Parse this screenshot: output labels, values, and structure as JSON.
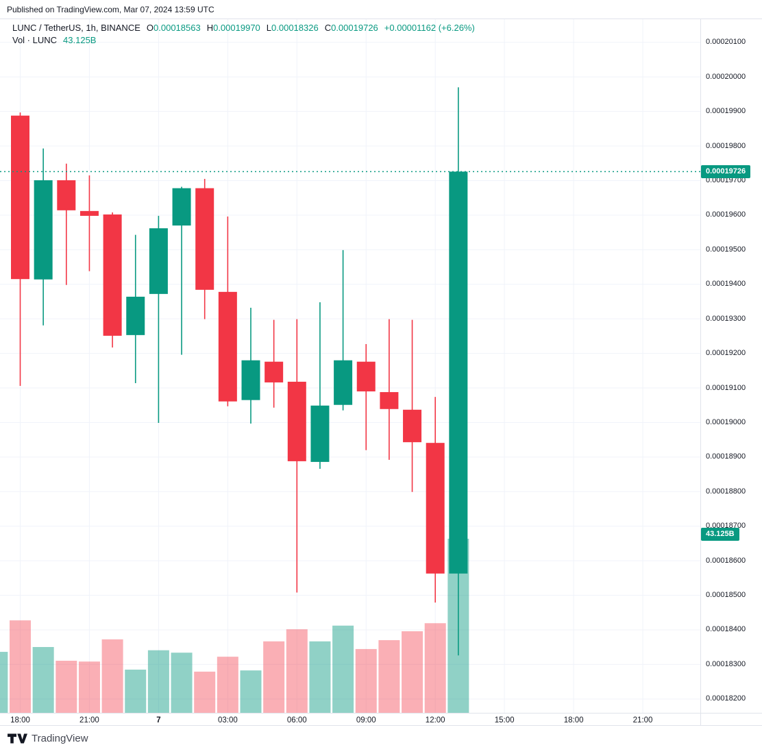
{
  "published_bar": {
    "text": "Published on TradingView.com, Mar 07, 2024 13:59 UTC"
  },
  "legend": {
    "symbol_title": "LUNC / TetherUS, 1h, BINANCE",
    "o_label": "O",
    "o_value": "0.00018563",
    "h_label": "H",
    "h_value": "0.00019970",
    "l_label": "L",
    "l_value": "0.00018326",
    "c_label": "C",
    "c_value": "0.00019726",
    "change_text": "+0.00001162 (+6.26%)",
    "volume_row_label": "Vol · LUNC",
    "volume_row_value": "43.125B"
  },
  "price_axis": {
    "ticks": [
      "0.00020100",
      "0.00020000",
      "0.00019900",
      "0.00019800",
      "0.00019700",
      "0.00019600",
      "0.00019500",
      "0.00019400",
      "0.00019300",
      "0.00019200",
      "0.00019100",
      "0.00019000",
      "0.00018900",
      "0.00018800",
      "0.00018700",
      "0.00018600",
      "0.00018500",
      "0.00018400",
      "0.00018300",
      "0.00018200"
    ],
    "price_badge_text": "0.00019726",
    "volume_badge_text": "43.125B"
  },
  "time_axis": {
    "ticks": [
      {
        "label": "18:00",
        "slot": 0,
        "is_date": false
      },
      {
        "label": "21:00",
        "slot": 3,
        "is_date": false
      },
      {
        "label": "7",
        "slot": 6,
        "is_date": true
      },
      {
        "label": "03:00",
        "slot": 9,
        "is_date": false
      },
      {
        "label": "06:00",
        "slot": 12,
        "is_date": false
      },
      {
        "label": "09:00",
        "slot": 15,
        "is_date": false
      },
      {
        "label": "12:00",
        "slot": 18,
        "is_date": false
      },
      {
        "label": "15:00",
        "slot": 21,
        "is_date": false
      },
      {
        "label": "18:00",
        "slot": 24,
        "is_date": false
      },
      {
        "label": "21:00",
        "slot": 27,
        "is_date": false
      }
    ]
  },
  "footer": {
    "logo_text": "TradingView"
  },
  "colors": {
    "up": "#089981",
    "down": "#f23645",
    "up_volume": "rgba(8,153,129,0.45)",
    "down_volume": "rgba(242,54,69,0.40)",
    "grid": "#f0f3fa",
    "axis_border": "#e0e3eb",
    "text": "#131722",
    "badge_bg": "#089981",
    "price_line": "#089981"
  },
  "chart_data": {
    "type": "candlestick+volume",
    "title": "LUNC / TetherUS, 1h, BINANCE",
    "interval": "1h",
    "ylim": [
      0.0001816,
      0.00020167
    ],
    "grid": true,
    "current_price": 0.00019726,
    "candles": [
      {
        "time": "18:00",
        "o": 0.00019888,
        "h": 0.00019897,
        "l": 0.00019106,
        "c": 0.00019415
      },
      {
        "time": "19:00",
        "o": 0.00019414,
        "h": 0.00019793,
        "l": 0.00019281,
        "c": 0.00019701
      },
      {
        "time": "20:00",
        "o": 0.00019701,
        "h": 0.00019749,
        "l": 0.00019398,
        "c": 0.00019614
      },
      {
        "time": "21:00",
        "o": 0.00019612,
        "h": 0.00019715,
        "l": 0.00019438,
        "c": 0.00019598
      },
      {
        "time": "22:00",
        "o": 0.00019602,
        "h": 0.00019608,
        "l": 0.00019217,
        "c": 0.00019251
      },
      {
        "time": "23:00",
        "o": 0.00019253,
        "h": 0.00019543,
        "l": 0.00019114,
        "c": 0.00019364
      },
      {
        "time": "00:00",
        "o": 0.00019372,
        "h": 0.00019598,
        "l": 0.00018999,
        "c": 0.00019562
      },
      {
        "time": "01:00",
        "o": 0.0001957,
        "h": 0.00019682,
        "l": 0.00019196,
        "c": 0.00019678
      },
      {
        "time": "02:00",
        "o": 0.00019678,
        "h": 0.00019705,
        "l": 0.00019299,
        "c": 0.00019384
      },
      {
        "time": "03:00",
        "o": 0.00019378,
        "h": 0.00019596,
        "l": 0.00019047,
        "c": 0.00019061
      },
      {
        "time": "04:00",
        "o": 0.00019065,
        "h": 0.00019332,
        "l": 0.00018997,
        "c": 0.0001918
      },
      {
        "time": "05:00",
        "o": 0.00019176,
        "h": 0.00019297,
        "l": 0.00019043,
        "c": 0.00019116
      },
      {
        "time": "06:00",
        "o": 0.00019118,
        "h": 0.00019299,
        "l": 0.00018508,
        "c": 0.00018888
      },
      {
        "time": "07:00",
        "o": 0.00018886,
        "h": 0.00019348,
        "l": 0.00018866,
        "c": 0.00019049
      },
      {
        "time": "08:00",
        "o": 0.00019051,
        "h": 0.00019499,
        "l": 0.00019035,
        "c": 0.0001918
      },
      {
        "time": "09:00",
        "o": 0.00019176,
        "h": 0.00019227,
        "l": 0.0001892,
        "c": 0.0001909
      },
      {
        "time": "10:00",
        "o": 0.00019088,
        "h": 0.00019299,
        "l": 0.00018892,
        "c": 0.00019039
      },
      {
        "time": "11:00",
        "o": 0.00019037,
        "h": 0.00019297,
        "l": 0.00018799,
        "c": 0.00018943
      },
      {
        "time": "12:00",
        "o": 0.00018941,
        "h": 0.00019074,
        "l": 0.00018479,
        "c": 0.00018563
      },
      {
        "time": "13:00",
        "o": 0.00018563,
        "h": 0.0001997,
        "l": 0.00018326,
        "c": 0.00019726
      }
    ],
    "volumes_billion": [
      22.9,
      16.3,
      12.9,
      12.7,
      18.2,
      10.7,
      15.5,
      14.9,
      10.2,
      13.9,
      10.5,
      17.7,
      20.7,
      17.7,
      21.6,
      15.8,
      18.0,
      20.2,
      22.2,
      43.125
    ],
    "partial_prev_bar": {
      "volume_billion": 15.1,
      "direction": "up"
    },
    "last_volume_label": "43.125B"
  }
}
